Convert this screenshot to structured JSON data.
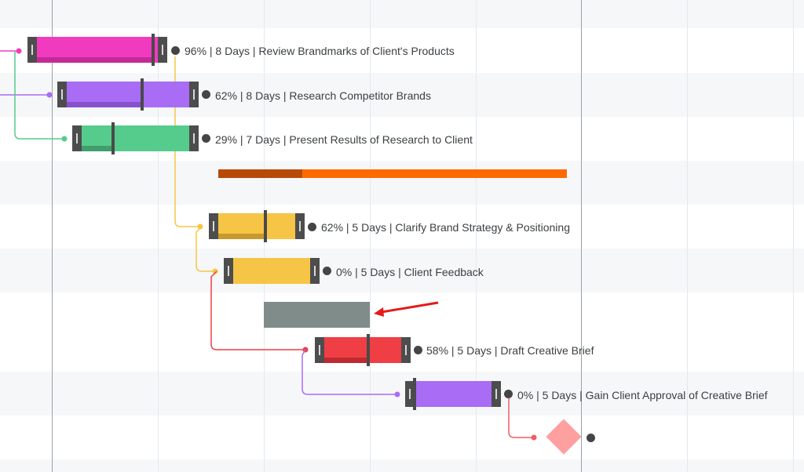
{
  "gantt": {
    "tasks": [
      {
        "label": "96% | 8 Days | Review Brandmarks of Client's Products",
        "progress": 0.96,
        "duration_days": 8,
        "color": "#f13bbf"
      },
      {
        "label": "62% | 8 Days | Research Competitor Brands",
        "progress": 0.62,
        "duration_days": 8,
        "color": "#a86cf5"
      },
      {
        "label": "29% | 7 Days | Present Results of Research to Client",
        "progress": 0.29,
        "duration_days": 7,
        "color": "#55cc8c"
      },
      {
        "label": "62% | 5 Days | Clarify Brand Strategy & Positioning",
        "progress": 0.62,
        "duration_days": 5,
        "color": "#f7c545"
      },
      {
        "label": "0% | 5 Days | Client Feedback",
        "progress": 0.0,
        "duration_days": 5,
        "color": "#f7c545"
      },
      {
        "label": "58% | 5 Days | Draft Creative Brief",
        "progress": 0.58,
        "duration_days": 5,
        "color": "#f03e45"
      },
      {
        "label": "0% | 5 Days | Gain Client Approval of Creative Brief",
        "progress": 0.0,
        "duration_days": 5,
        "color": "#a86cf5"
      }
    ],
    "summary_bar": {
      "progress": 0.24,
      "color": "#ff6a00",
      "done_color": "#b74a08"
    },
    "placeholder_bar": {
      "color": "#7f8c8a"
    },
    "milestone": {
      "color": "#ffa0a0"
    },
    "annotation_arrow": {
      "color": "#e41b1b"
    },
    "colors": {
      "stripe": "#f6f7f9",
      "grid": "#e6e8ec",
      "grid_major": "#9aa0a6",
      "handle": "#4d4d4d"
    }
  }
}
